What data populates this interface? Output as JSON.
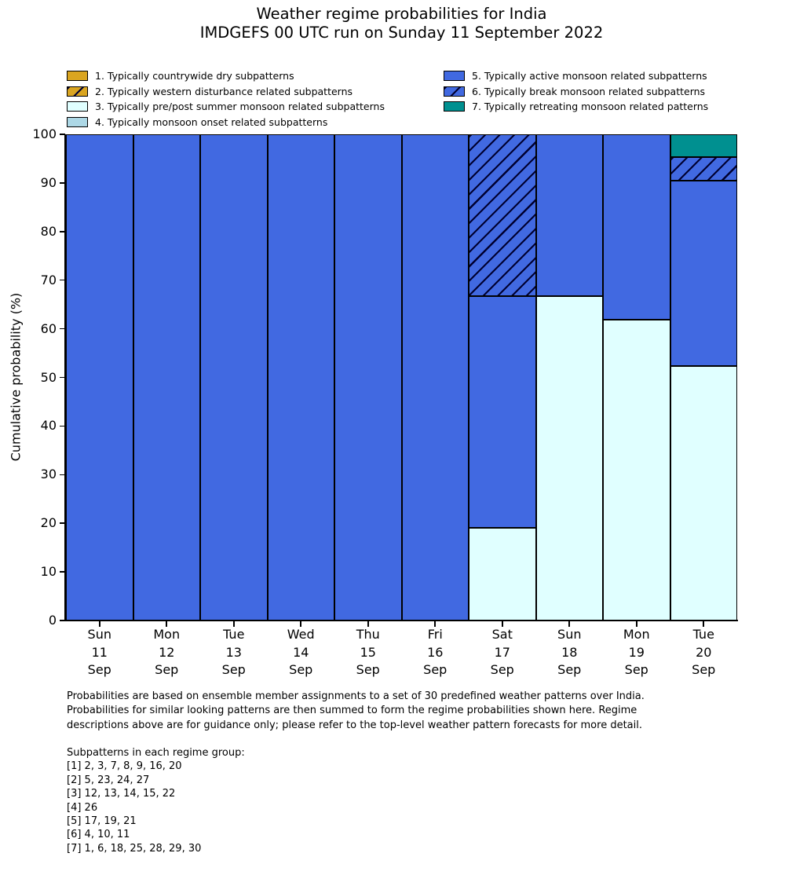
{
  "title": {
    "line1": "Weather regime probabilities for India",
    "line2": "IMDGEFS 00 UTC run on Sunday 11 September 2022"
  },
  "chart_data": {
    "type": "bar",
    "stacked": true,
    "title": "Weather regime probabilities for India",
    "subtitle": "IMDGEFS 00 UTC run on Sunday 11 September 2022",
    "ylabel": "Cumulative probability (%)",
    "ylim": [
      0,
      100
    ],
    "yticks": [
      0,
      10,
      20,
      30,
      40,
      50,
      60,
      70,
      80,
      90,
      100
    ],
    "grid": false,
    "legend_position": "top, two columns",
    "categories": [
      {
        "day": "Sun",
        "date": "11",
        "month": "Sep"
      },
      {
        "day": "Mon",
        "date": "12",
        "month": "Sep"
      },
      {
        "day": "Tue",
        "date": "13",
        "month": "Sep"
      },
      {
        "day": "Wed",
        "date": "14",
        "month": "Sep"
      },
      {
        "day": "Thu",
        "date": "15",
        "month": "Sep"
      },
      {
        "day": "Fri",
        "date": "16",
        "month": "Sep"
      },
      {
        "day": "Sat",
        "date": "17",
        "month": "Sep"
      },
      {
        "day": "Sun",
        "date": "18",
        "month": "Sep"
      },
      {
        "day": "Mon",
        "date": "19",
        "month": "Sep"
      },
      {
        "day": "Tue",
        "date": "20",
        "month": "Sep"
      }
    ],
    "series": [
      {
        "name": "1. Typically countrywide dry subpatterns",
        "color": "#DAA520",
        "hatch": false,
        "values": [
          0,
          0,
          0,
          0,
          0,
          0,
          0,
          0,
          0,
          0
        ]
      },
      {
        "name": "2. Typically western disturbance related subpatterns",
        "color": "#DAA520",
        "hatch": true,
        "values": [
          0,
          0,
          0,
          0,
          0,
          0,
          0,
          0,
          0,
          0
        ]
      },
      {
        "name": "3. Typically pre/post summer monsoon related subpatterns",
        "color": "#E0FFFF",
        "hatch": false,
        "values": [
          0,
          0,
          0,
          0,
          0,
          0,
          19.05,
          66.67,
          61.9,
          52.38
        ]
      },
      {
        "name": "4. Typically monsoon onset related subpatterns",
        "color": "#ADD8E6",
        "hatch": false,
        "values": [
          0,
          0,
          0,
          0,
          0,
          0,
          0,
          0,
          0,
          0
        ]
      },
      {
        "name": "5. Typically active monsoon related subpatterns",
        "color": "#4169E1",
        "hatch": false,
        "values": [
          100,
          100,
          100,
          100,
          100,
          100,
          47.62,
          33.33,
          38.1,
          38.1
        ]
      },
      {
        "name": "6. Typically break monsoon related subpatterns",
        "color": "#4169E1",
        "hatch": true,
        "values": [
          0,
          0,
          0,
          0,
          0,
          0,
          33.33,
          0,
          0,
          4.76
        ]
      },
      {
        "name": "7. Typically retreating monsoon related patterns",
        "color": "#009090",
        "hatch": false,
        "values": [
          0,
          0,
          0,
          0,
          0,
          0,
          0,
          0,
          0,
          4.76
        ]
      }
    ]
  },
  "footnote": {
    "line1": "Probabilities are based on ensemble member assignments to a set of 30 predefined weather patterns over India.",
    "line2": "Probabilities for similar looking patterns are then summed to form the regime probabilities shown here. Regime",
    "line3": "descriptions above are for guidance only; please refer to the top-level weather pattern forecasts for more detail."
  },
  "subpatterns": {
    "heading": "Subpatterns in each regime group:",
    "groups": [
      "[1] 2, 3, 7, 8, 9, 16, 20",
      "[2] 5, 23, 24, 27",
      "[3] 12, 13, 14, 15, 22",
      "[4] 26",
      "[5] 17, 19, 21",
      "[6] 4, 10, 11",
      "[7] 1, 6, 18, 25, 28, 29, 30"
    ]
  }
}
